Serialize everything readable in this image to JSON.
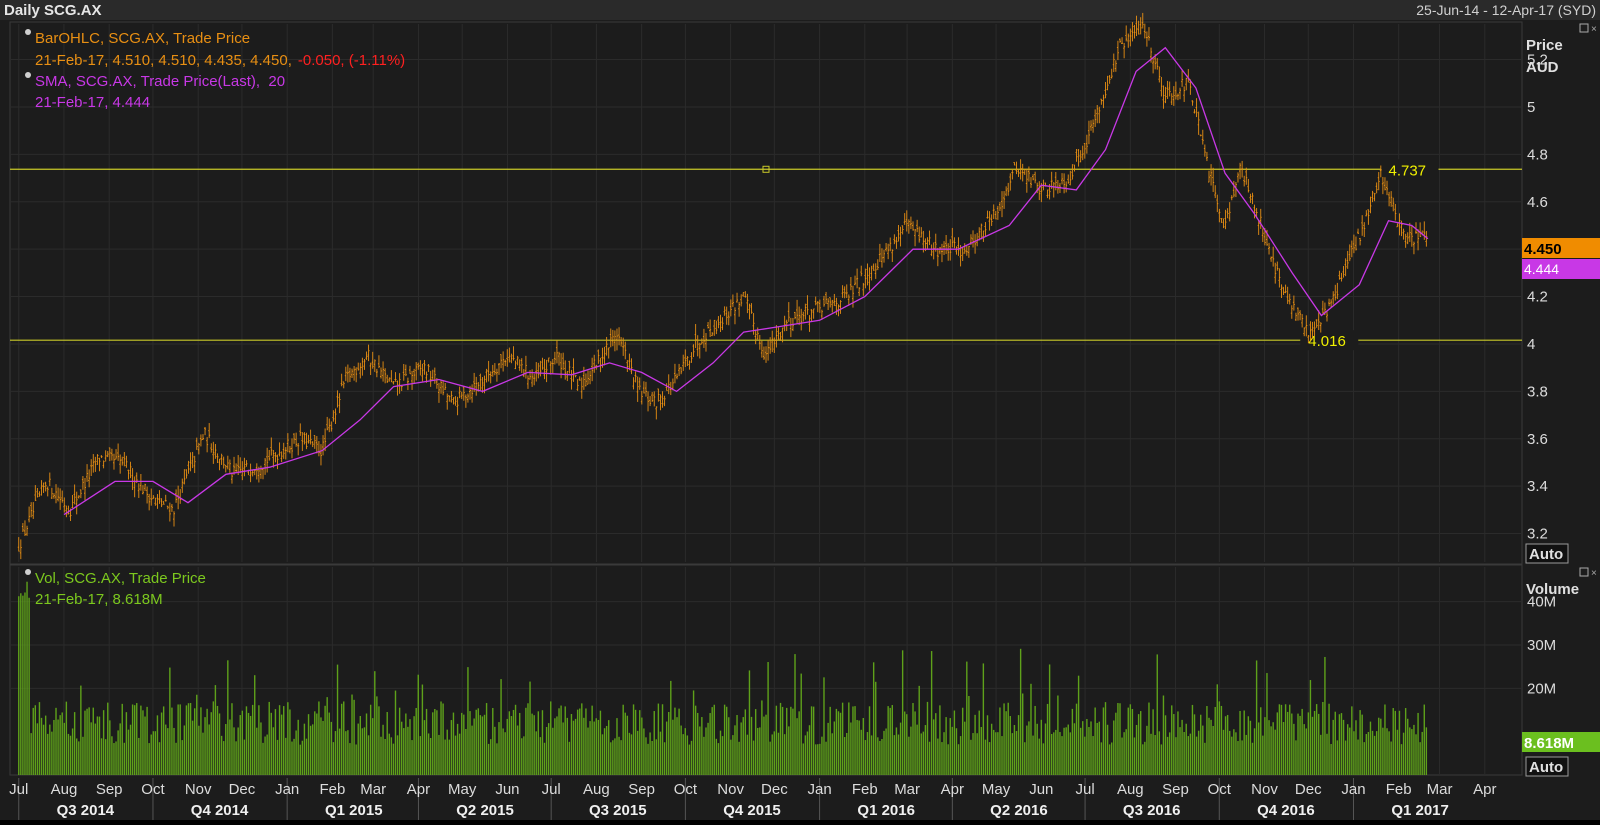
{
  "header": {
    "title": "Daily SCG.AX",
    "range": "25-Jun-14 - 12-Apr-17 (SYD)"
  },
  "price_panel": {
    "axis_title": "Price",
    "axis_unit": "AUD",
    "auto_label": "Auto",
    "legend": {
      "bar_name": "BarOHLC, SCG.AX, Trade Price",
      "bar_values": "21-Feb-17, 4.510, 4.510, 4.435, 4.450,",
      "bar_change": "-0.050, (-1.11%)",
      "sma_name": "SMA, SCG.AX, Trade Price(Last),  20",
      "sma_values": "21-Feb-17, 4.444"
    },
    "last_price_tag": "4.450",
    "sma_tag": "4.444",
    "hline_high_label": "4.737",
    "hline_low_label": "4.016"
  },
  "volume_panel": {
    "axis_title": "Volume",
    "auto_label": "Auto",
    "legend": {
      "name": "Vol, SCG.AX, Trade Price",
      "values": "21-Feb-17, 8.618M"
    },
    "last_volume_tag": "8.618M"
  },
  "colors": {
    "bars": "#e88f13",
    "sma": "#c838e6",
    "volume": "#5ea11a",
    "hline": "#c8c828",
    "background": "#1c1c1c",
    "down": "#ff2020"
  },
  "chart_data": {
    "type": "bar",
    "title": "Daily SCG.AX",
    "period": "25-Jun-14 - 12-Apr-17",
    "series": [
      {
        "name": "BarOHLC, SCG.AX, Trade Price",
        "last": {
          "date": "21-Feb-17",
          "open": 4.51,
          "high": 4.51,
          "low": 4.435,
          "close": 4.45,
          "change": -0.05,
          "change_pct": -1.11
        }
      },
      {
        "name": "SMA, SCG.AX, Trade Price(Last), 20",
        "last": {
          "date": "21-Feb-17",
          "value": 4.444
        }
      },
      {
        "name": "Vol, SCG.AX, Trade Price",
        "last": {
          "date": "21-Feb-17",
          "value_millions": 8.618
        }
      }
    ],
    "price_ticks": [
      3.2,
      3.4,
      3.6,
      3.8,
      4,
      4.2,
      4.4,
      4.6,
      4.8,
      5,
      5.2
    ],
    "price_tick_labels": [
      "3.2",
      "3.4",
      "3.6",
      "3.8",
      "4",
      "4.2",
      "4.4",
      "4.6",
      "4.8",
      "5",
      "5.2"
    ],
    "volume_ticks_m": [
      20,
      30,
      40
    ],
    "volume_tick_labels": [
      "20M",
      "30M",
      "40M"
    ],
    "horizontal_lines": [
      4.737,
      4.016
    ],
    "month_labels": [
      "Jul",
      "Aug",
      "Sep",
      "Oct",
      "Nov",
      "Dec",
      "Jan",
      "Feb",
      "Mar",
      "Apr",
      "May",
      "Jun",
      "Jul",
      "Aug",
      "Sep",
      "Oct",
      "Nov",
      "Dec",
      "Jan",
      "Feb",
      "Mar",
      "Apr",
      "May",
      "Jun",
      "Jul",
      "Aug",
      "Sep",
      "Oct",
      "Nov",
      "Dec",
      "Jan",
      "Feb",
      "Mar",
      "Apr"
    ],
    "quarter_labels": [
      "Q3 2014",
      "Q4 2014",
      "Q1 2015",
      "Q2 2015",
      "Q3 2015",
      "Q4 2015",
      "Q1 2016",
      "Q2 2016",
      "Q3 2016",
      "Q4 2016",
      "Q1 2017"
    ],
    "price_path": [
      [
        "2014-07-01",
        3.15
      ],
      [
        "2014-07-20",
        3.42
      ],
      [
        "2014-08-05",
        3.3
      ],
      [
        "2014-08-25",
        3.52
      ],
      [
        "2014-09-10",
        3.5
      ],
      [
        "2014-09-30",
        3.35
      ],
      [
        "2014-10-15",
        3.3
      ],
      [
        "2014-11-05",
        3.62
      ],
      [
        "2014-11-25",
        3.45
      ],
      [
        "2014-12-15",
        3.5
      ],
      [
        "2015-01-10",
        3.6
      ],
      [
        "2015-01-25",
        3.55
      ],
      [
        "2015-02-10",
        3.85
      ],
      [
        "2015-02-25",
        3.95
      ],
      [
        "2015-03-15",
        3.82
      ],
      [
        "2015-04-05",
        3.9
      ],
      [
        "2015-04-25",
        3.75
      ],
      [
        "2015-05-15",
        3.85
      ],
      [
        "2015-06-01",
        3.95
      ],
      [
        "2015-06-20",
        3.85
      ],
      [
        "2015-07-05",
        3.95
      ],
      [
        "2015-07-20",
        3.82
      ],
      [
        "2015-08-05",
        3.95
      ],
      [
        "2015-08-15",
        4.05
      ],
      [
        "2015-08-30",
        3.8
      ],
      [
        "2015-09-10",
        3.75
      ],
      [
        "2015-09-25",
        3.85
      ],
      [
        "2015-10-10",
        4.02
      ],
      [
        "2015-10-25",
        4.1
      ],
      [
        "2015-11-10",
        4.2
      ],
      [
        "2015-11-25",
        3.95
      ],
      [
        "2015-12-10",
        4.1
      ],
      [
        "2016-01-01",
        4.15
      ],
      [
        "2016-01-20",
        4.2
      ],
      [
        "2016-02-10",
        4.35
      ],
      [
        "2016-03-01",
        4.5
      ],
      [
        "2016-03-20",
        4.4
      ],
      [
        "2016-04-10",
        4.4
      ],
      [
        "2016-05-01",
        4.55
      ],
      [
        "2016-05-15",
        4.75
      ],
      [
        "2016-06-01",
        4.65
      ],
      [
        "2016-06-20",
        4.7
      ],
      [
        "2016-07-05",
        4.9
      ],
      [
        "2016-07-25",
        5.25
      ],
      [
        "2016-08-10",
        5.35
      ],
      [
        "2016-08-25",
        5.05
      ],
      [
        "2016-09-10",
        5.1
      ],
      [
        "2016-09-25",
        4.7
      ],
      [
        "2016-10-05",
        4.5
      ],
      [
        "2016-10-15",
        4.75
      ],
      [
        "2016-10-30",
        4.5
      ],
      [
        "2016-11-15",
        4.2
      ],
      [
        "2016-12-01",
        4.05
      ],
      [
        "2016-12-15",
        4.15
      ],
      [
        "2017-01-05",
        4.45
      ],
      [
        "2017-01-20",
        4.72
      ],
      [
        "2017-02-05",
        4.45
      ],
      [
        "2017-02-21",
        4.45
      ]
    ],
    "sma_path": [
      [
        "2014-08-01",
        3.28
      ],
      [
        "2014-09-05",
        3.42
      ],
      [
        "2014-10-01",
        3.42
      ],
      [
        "2014-10-25",
        3.33
      ],
      [
        "2014-11-20",
        3.45
      ],
      [
        "2014-12-20",
        3.48
      ],
      [
        "2015-01-25",
        3.55
      ],
      [
        "2015-02-20",
        3.68
      ],
      [
        "2015-03-15",
        3.82
      ],
      [
        "2015-04-15",
        3.85
      ],
      [
        "2015-05-15",
        3.8
      ],
      [
        "2015-06-15",
        3.88
      ],
      [
        "2015-07-15",
        3.87
      ],
      [
        "2015-08-10",
        3.92
      ],
      [
        "2015-09-01",
        3.88
      ],
      [
        "2015-09-25",
        3.8
      ],
      [
        "2015-10-20",
        3.92
      ],
      [
        "2015-11-10",
        4.05
      ],
      [
        "2015-12-01",
        4.07
      ],
      [
        "2016-01-01",
        4.1
      ],
      [
        "2016-02-01",
        4.2
      ],
      [
        "2016-03-05",
        4.4
      ],
      [
        "2016-04-05",
        4.4
      ],
      [
        "2016-05-10",
        4.5
      ],
      [
        "2016-06-01",
        4.67
      ],
      [
        "2016-06-25",
        4.65
      ],
      [
        "2016-07-15",
        4.82
      ],
      [
        "2016-08-05",
        5.15
      ],
      [
        "2016-08-25",
        5.25
      ],
      [
        "2016-09-15",
        5.08
      ],
      [
        "2016-10-05",
        4.72
      ],
      [
        "2016-10-25",
        4.55
      ],
      [
        "2016-11-20",
        4.3
      ],
      [
        "2016-12-10",
        4.12
      ],
      [
        "2017-01-05",
        4.25
      ],
      [
        "2017-01-25",
        4.52
      ],
      [
        "2017-02-10",
        4.5
      ],
      [
        "2017-02-21",
        4.444
      ]
    ],
    "y_range": [
      3.08,
      5.35
    ],
    "volume_range_m": [
      0,
      48
    ]
  }
}
